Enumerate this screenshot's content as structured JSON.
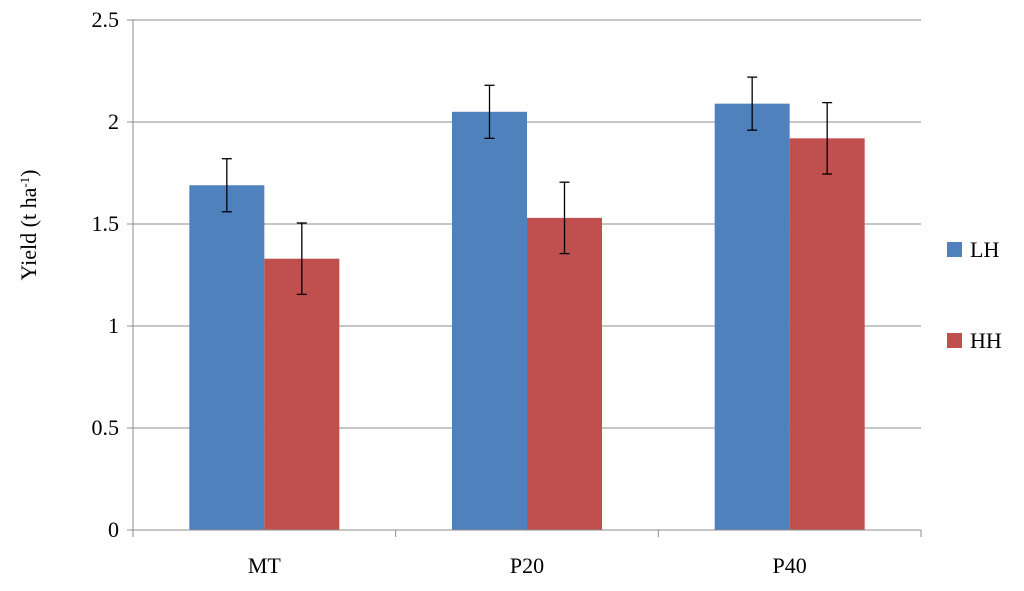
{
  "chart_data": {
    "type": "bar",
    "categories": [
      "MT",
      "P20",
      "P40"
    ],
    "series": [
      {
        "name": "LH",
        "color": "#4f81bd",
        "values": [
          1.69,
          2.05,
          2.09
        ],
        "errors": [
          0.13,
          0.13,
          0.13
        ]
      },
      {
        "name": "HH",
        "color": "#c0504d",
        "values": [
          1.33,
          1.53,
          1.92
        ],
        "errors": [
          0.175,
          0.175,
          0.175
        ]
      }
    ],
    "yticks": [
      "0",
      "0.5",
      "1",
      "1.5",
      "2",
      "2.5"
    ],
    "ylim": [
      0,
      2.5
    ],
    "ylabel": {
      "main": "Yield (t ha",
      "sup": "-1",
      "end": ")"
    },
    "xlabel": "",
    "title": "",
    "grid": true,
    "legend_position": "right"
  }
}
